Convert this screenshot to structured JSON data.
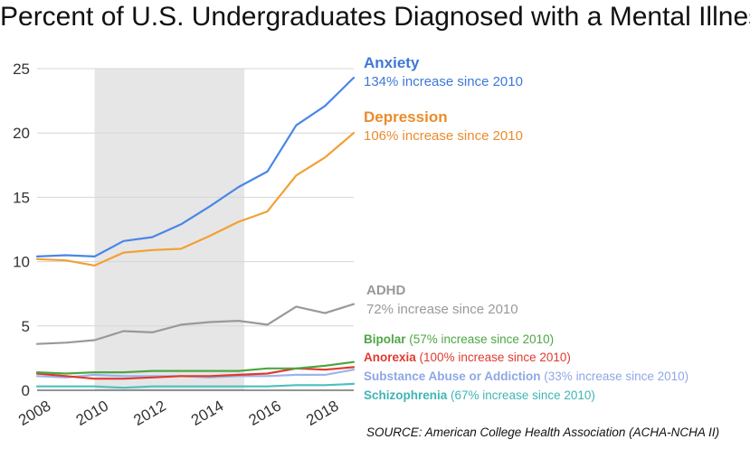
{
  "title": "Percent of U.S. Undergraduates Diagnosed with a Mental Illness",
  "source": "SOURCE: American College Health Association (ACHA-NCHA II)",
  "chart_data": {
    "type": "line",
    "title": "Percent of U.S. Undergraduates Diagnosed with a Mental Illness",
    "xlabel": "",
    "ylabel": "",
    "x": [
      2008,
      2009,
      2010,
      2011,
      2012,
      2013,
      2014,
      2015,
      2016,
      2017,
      2018,
      2019
    ],
    "x_ticks": [
      "2008",
      "2010",
      "2012",
      "2014",
      "2016",
      "2018"
    ],
    "xlim": [
      2008,
      2019
    ],
    "ylim": [
      0,
      25
    ],
    "y_ticks": [
      "0",
      "5",
      "10",
      "15",
      "20",
      "25"
    ],
    "grid": "horizontal",
    "shaded_region": [
      2010,
      2015.2
    ],
    "series": [
      {
        "name": "Anxiety",
        "annotation": "134% increase since 2010",
        "color": "#4a86e8",
        "values": [
          10.4,
          10.5,
          10.4,
          11.6,
          11.9,
          12.9,
          14.3,
          15.8,
          17.0,
          20.6,
          22.1,
          24.3
        ]
      },
      {
        "name": "Depression",
        "annotation": "106% increase since 2010",
        "color": "#f2a033",
        "values": [
          10.2,
          10.1,
          9.7,
          10.7,
          10.9,
          11.0,
          12.0,
          13.1,
          13.9,
          16.7,
          18.1,
          20.0
        ]
      },
      {
        "name": "ADHD",
        "annotation": "72% increase since 2010",
        "color": "#999999",
        "values": [
          3.6,
          3.7,
          3.9,
          4.6,
          4.5,
          5.1,
          5.3,
          5.4,
          5.1,
          6.5,
          6.0,
          6.7
        ]
      },
      {
        "name": "Bipolar",
        "annotation": "(57% increase since 2010)",
        "color": "#4ea644",
        "values": [
          1.4,
          1.3,
          1.4,
          1.4,
          1.5,
          1.5,
          1.5,
          1.5,
          1.7,
          1.7,
          1.9,
          2.2
        ]
      },
      {
        "name": "Anorexia",
        "annotation": "(100% increase since 2010)",
        "color": "#e03a2f",
        "values": [
          1.3,
          1.1,
          0.9,
          0.9,
          1.0,
          1.1,
          1.1,
          1.2,
          1.3,
          1.7,
          1.6,
          1.8
        ]
      },
      {
        "name": "Substance Abuse or Addiction",
        "annotation": "(33% increase since 2010)",
        "color": "#9bb3ee",
        "values": [
          1.1,
          1.0,
          1.2,
          1.1,
          1.1,
          1.1,
          1.0,
          1.1,
          1.1,
          1.2,
          1.2,
          1.6
        ]
      },
      {
        "name": "Schizophrenia",
        "annotation": "(67% increase since 2010)",
        "color": "#4cc0c0",
        "values": [
          0.3,
          0.3,
          0.3,
          0.2,
          0.3,
          0.3,
          0.3,
          0.3,
          0.3,
          0.4,
          0.4,
          0.5
        ]
      }
    ]
  }
}
